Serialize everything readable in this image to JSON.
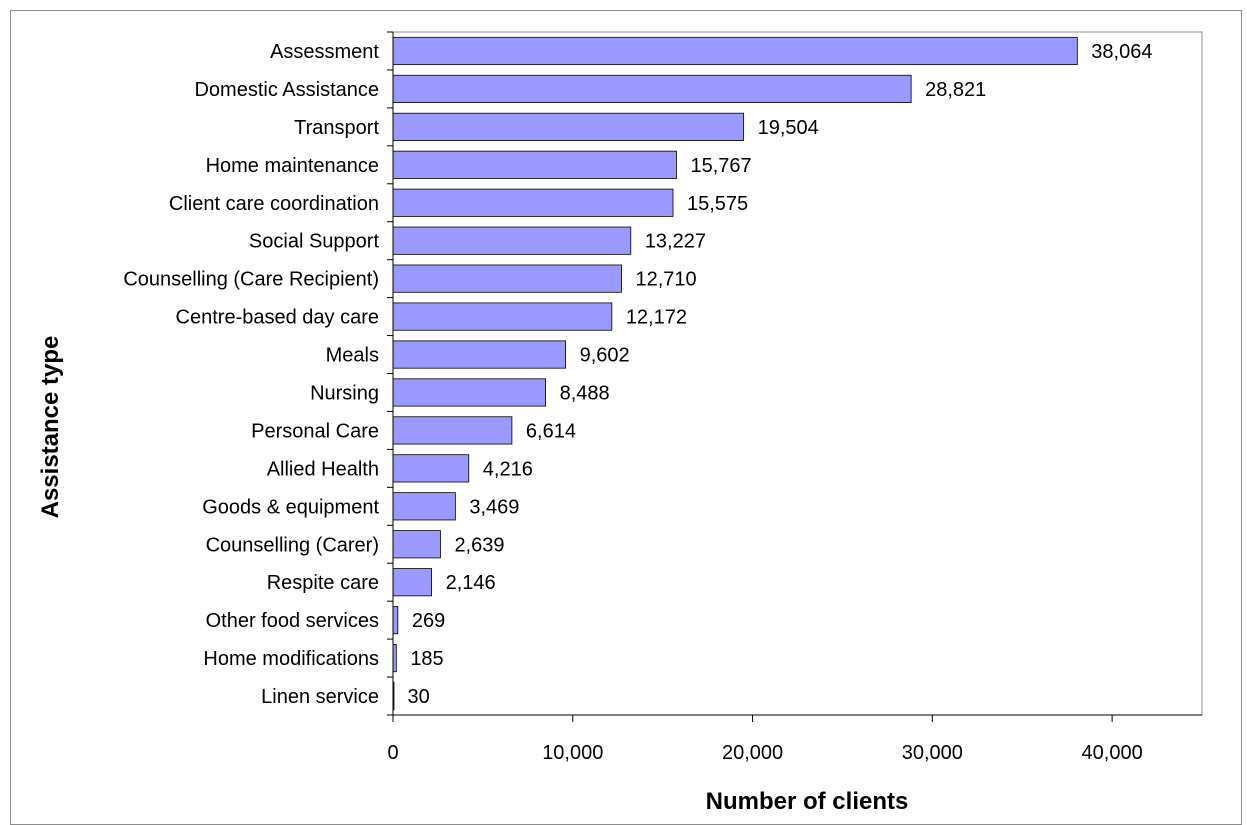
{
  "chart_data": {
    "type": "bar",
    "orientation": "horizontal",
    "categories": [
      "Assessment",
      "Domestic Assistance",
      "Transport",
      "Home maintenance",
      "Client care coordination",
      "Social Support",
      "Counselling (Care Recipient)",
      "Centre-based day care",
      "Meals",
      "Nursing",
      "Personal Care",
      "Allied Health",
      "Goods & equipment",
      "Counselling (Carer)",
      "Respite care",
      "Other food services",
      "Home modifications",
      "Linen service"
    ],
    "values": [
      38064,
      28821,
      19504,
      15767,
      15575,
      13227,
      12710,
      12172,
      9602,
      8488,
      6614,
      4216,
      3469,
      2639,
      2146,
      269,
      185,
      30
    ],
    "value_labels": [
      "38,064",
      "28,821",
      "19,504",
      "15,767",
      "15,575",
      "13,227",
      "12,710",
      "12,172",
      "9,602",
      "8,488",
      "6,614",
      "4,216",
      "3,469",
      "2,639",
      "2,146",
      "269",
      "185",
      "30"
    ],
    "xlabel": "Number of clients",
    "ylabel": "Assistance type",
    "xlim": [
      0,
      45000
    ],
    "x_ticks": [
      0,
      10000,
      20000,
      30000,
      40000
    ],
    "x_tick_labels": [
      "0",
      "10,000",
      "20,000",
      "30,000",
      "40,000"
    ],
    "grid": false,
    "colors": {
      "bar_fill": "#9999ff",
      "bar_stroke": "#000000"
    }
  }
}
